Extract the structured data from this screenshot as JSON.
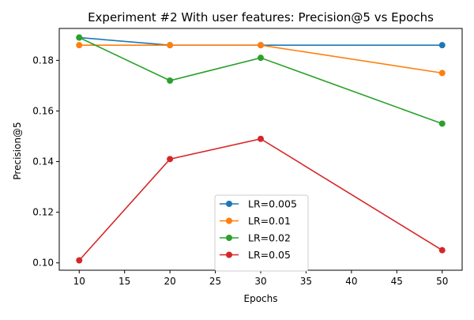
{
  "chart_data": {
    "type": "line",
    "title": "Experiment #2 With user features: Precision@5 vs Epochs",
    "xlabel": "Epochs",
    "ylabel": "Precision@5",
    "xlim": [
      7.8,
      52.2
    ],
    "ylim": [
      0.0971,
      0.1926
    ],
    "x_ticks": [
      10,
      15,
      20,
      25,
      30,
      35,
      40,
      45,
      50
    ],
    "y_ticks": [
      0.1,
      0.12,
      0.14,
      0.16,
      0.18
    ],
    "y_tick_labels": [
      "0.10",
      "0.12",
      "0.14",
      "0.16",
      "0.18"
    ],
    "grid": false,
    "legend_position": "lower-center",
    "x": [
      10,
      20,
      30,
      50
    ],
    "series": [
      {
        "name": "LR=0.005",
        "color": "#1f77b4",
        "values": [
          0.189,
          0.186,
          0.186,
          0.186
        ]
      },
      {
        "name": "LR=0.01",
        "color": "#ff7f0e",
        "values": [
          0.186,
          0.186,
          0.186,
          0.175
        ]
      },
      {
        "name": "LR=0.02",
        "color": "#2ca02c",
        "values": [
          0.189,
          0.172,
          0.181,
          0.155
        ]
      },
      {
        "name": "LR=0.05",
        "color": "#d62728",
        "values": [
          0.101,
          0.141,
          0.149,
          0.105
        ]
      }
    ]
  }
}
